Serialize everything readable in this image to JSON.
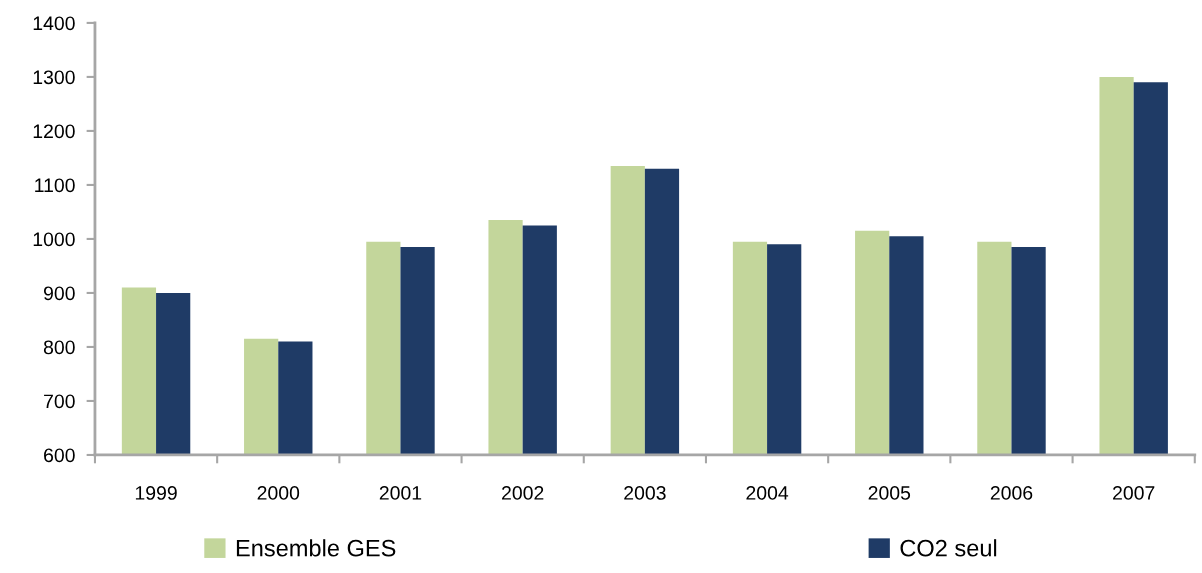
{
  "chart_data": {
    "type": "bar",
    "categories": [
      "1999",
      "2000",
      "2001",
      "2002",
      "2003",
      "2004",
      "2005",
      "2006",
      "2007"
    ],
    "series": [
      {
        "name": "Ensemble GES",
        "color": "#c3d69b",
        "values": [
          910,
          815,
          995,
          1035,
          1135,
          995,
          1015,
          995,
          1300
        ]
      },
      {
        "name": "CO2 seul",
        "color": "#1f3b66",
        "values": [
          900,
          810,
          985,
          1025,
          1130,
          990,
          1005,
          985,
          1290
        ]
      }
    ],
    "ylim": [
      600,
      1400
    ],
    "yticks": [
      600,
      700,
      800,
      900,
      1000,
      1100,
      1200,
      1300,
      1400
    ],
    "legend": "bottom"
  }
}
